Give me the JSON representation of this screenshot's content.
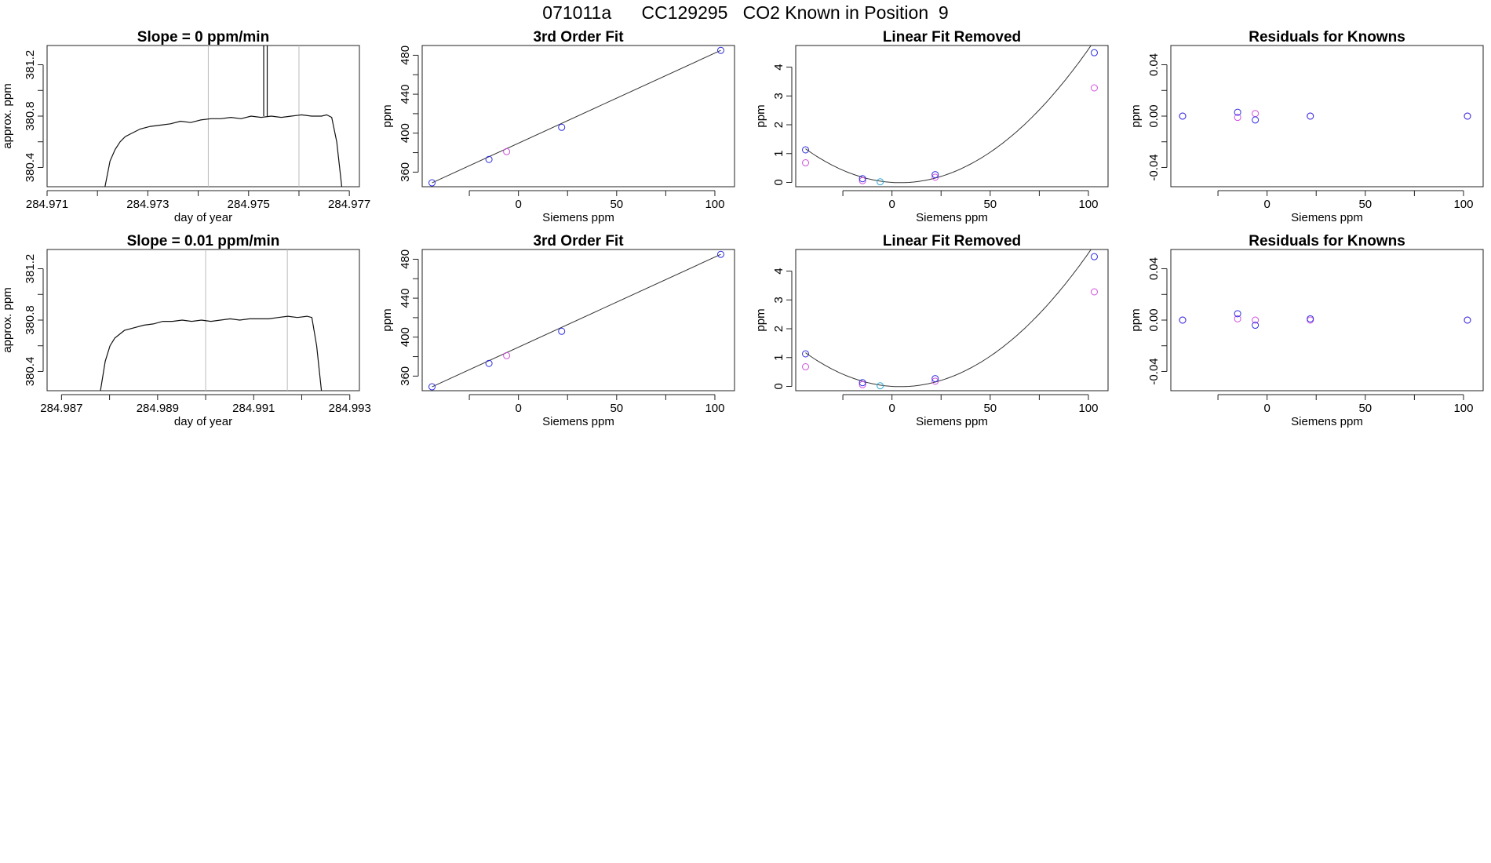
{
  "page_title": "071011a      CC129295   CO2 Known in Position  9",
  "colors": {
    "fit_line": "#333333",
    "trace": "#111111",
    "marker_bad": "#d14fe0",
    "marker_good": "#2e2ee0",
    "marker_mid": "#27a3d8",
    "vline": "#bbbbbb"
  },
  "chart_data": [
    {
      "type": "line",
      "panel": "row1-col1",
      "title": "Slope =  0  ppm/min",
      "xlabel": "day of year",
      "ylabel": "approx. ppm",
      "xlim": [
        284.971,
        284.9772
      ],
      "ylim": [
        380.25,
        381.35
      ],
      "xticks": [
        284.971,
        284.972,
        284.973,
        284.974,
        284.975,
        284.976,
        284.977
      ],
      "xtick_labels": [
        "284.971",
        "",
        "284.973",
        "",
        "284.975",
        "",
        "284.977"
      ],
      "yticks": [
        380.4,
        380.6,
        380.8,
        381.0,
        381.2
      ],
      "ytick_labels": [
        "380.4",
        "",
        "380.8",
        "",
        "381.2"
      ],
      "vlines": [
        284.9742,
        284.976
      ],
      "series": [
        {
          "name": "trace",
          "points": [
            [
              284.97215,
              380.25
            ],
            [
              284.97225,
              380.45
            ],
            [
              284.97235,
              380.54
            ],
            [
              284.97245,
              380.6
            ],
            [
              284.97255,
              380.64
            ],
            [
              284.97265,
              380.66
            ],
            [
              284.97285,
              380.7
            ],
            [
              284.97305,
              380.72
            ],
            [
              284.97325,
              380.73
            ],
            [
              284.97345,
              380.74
            ],
            [
              284.97365,
              380.76
            ],
            [
              284.97385,
              380.75
            ],
            [
              284.97405,
              380.77
            ],
            [
              284.97425,
              380.78
            ],
            [
              284.97445,
              380.78
            ],
            [
              284.97465,
              380.79
            ],
            [
              284.97485,
              380.78
            ],
            [
              284.97505,
              380.8
            ],
            [
              284.97525,
              380.79
            ],
            [
              284.97545,
              380.8
            ],
            [
              284.97565,
              380.79
            ],
            [
              284.97585,
              380.8
            ],
            [
              284.97605,
              380.81
            ],
            [
              284.97625,
              380.8
            ],
            [
              284.97645,
              380.8
            ],
            [
              284.97655,
              380.81
            ],
            [
              284.97665,
              380.79
            ],
            [
              284.97675,
              380.6
            ],
            [
              284.97685,
              380.25
            ]
          ]
        }
      ],
      "spike": {
        "x": [
          284.9753,
          284.97537
        ],
        "ymax": 381.35
      }
    },
    {
      "type": "scatter",
      "panel": "row1-col2",
      "title": "3rd Order Fit",
      "xlabel": "Siemens ppm",
      "ylabel": "ppm",
      "xlim": [
        -49,
        110
      ],
      "ylim": [
        345,
        490
      ],
      "xticks": [
        -25,
        0,
        25,
        50,
        75,
        100
      ],
      "xtick_labels": [
        "",
        "0",
        "",
        "50",
        "",
        "100"
      ],
      "yticks": [
        360,
        380,
        400,
        420,
        440,
        460,
        480
      ],
      "ytick_labels": [
        "360",
        "",
        "400",
        "",
        "440",
        "",
        "480"
      ],
      "fit_line": [
        [
          -44,
          349
        ],
        [
          103,
          485
        ]
      ],
      "points_blue": [
        [
          -44,
          349
        ],
        [
          -15,
          373
        ],
        [
          22,
          406
        ],
        [
          103,
          485
        ]
      ],
      "points_magenta": [
        [
          -6,
          381
        ]
      ]
    },
    {
      "type": "scatter",
      "panel": "row1-col3",
      "title": "Linear Fit Removed",
      "xlabel": "Siemens ppm",
      "ylabel": "ppm",
      "xlim": [
        -49,
        110
      ],
      "ylim": [
        -0.15,
        4.75
      ],
      "xticks": [
        -25,
        0,
        25,
        50,
        75,
        100
      ],
      "xtick_labels": [
        "",
        "0",
        "",
        "50",
        "",
        "100"
      ],
      "yticks": [
        0,
        1,
        2,
        3,
        4
      ],
      "ytick_labels": [
        "0",
        "1",
        "2",
        "3",
        "4"
      ],
      "curve_coeffs": {
        "a": 0.000505,
        "b": -0.0043,
        "c": 0.0
      },
      "points_blue": [
        [
          -44,
          1.13
        ],
        [
          -15,
          0.13
        ],
        [
          22,
          0.27
        ],
        [
          103,
          4.5
        ]
      ],
      "points_cyan": [
        [
          -6,
          0.02
        ]
      ],
      "points_magenta": [
        [
          -44,
          0.68
        ],
        [
          -15,
          0.06
        ],
        [
          22,
          0.18
        ],
        [
          103,
          3.28
        ]
      ]
    },
    {
      "type": "scatter",
      "panel": "row1-col4",
      "title": "Residuals for Knowns",
      "xlabel": "Siemens ppm",
      "ylabel": "ppm",
      "xlim": [
        -49,
        110
      ],
      "ylim": [
        -0.055,
        0.055
      ],
      "xticks": [
        -25,
        0,
        25,
        50,
        75,
        100
      ],
      "xtick_labels": [
        "",
        "0",
        "",
        "50",
        "",
        "100"
      ],
      "yticks": [
        -0.04,
        -0.02,
        0.0,
        0.02,
        0.04
      ],
      "ytick_labels": [
        "-0.04",
        "",
        "0.00",
        "",
        "0.04"
      ],
      "points_blue": [
        [
          -43,
          0.0
        ],
        [
          -15,
          0.003
        ],
        [
          -6,
          -0.003
        ],
        [
          22,
          0.0
        ],
        [
          102,
          0.0
        ]
      ],
      "points_magenta": [
        [
          -43,
          0.0
        ],
        [
          -15,
          -0.001
        ],
        [
          -6,
          0.002
        ],
        [
          22,
          0.0
        ],
        [
          102,
          0.0
        ]
      ]
    },
    {
      "type": "line",
      "panel": "row2-col1",
      "title": "Slope =  0.01  ppm/min",
      "xlabel": "day of year",
      "ylabel": "approx. ppm",
      "xlim": [
        284.9867,
        284.9932
      ],
      "ylim": [
        380.25,
        381.35
      ],
      "xticks": [
        284.987,
        284.988,
        284.989,
        284.99,
        284.991,
        284.992,
        284.993
      ],
      "xtick_labels": [
        "284.987",
        "",
        "284.989",
        "",
        "284.991",
        "",
        "284.993"
      ],
      "yticks": [
        380.4,
        380.6,
        380.8,
        381.0,
        381.2
      ],
      "ytick_labels": [
        "380.4",
        "",
        "380.8",
        "",
        "381.2"
      ],
      "vlines": [
        284.99,
        284.9917
      ],
      "series": [
        {
          "name": "trace",
          "points": [
            [
              284.98781,
              380.25
            ],
            [
              284.98791,
              380.48
            ],
            [
              284.98801,
              380.6
            ],
            [
              284.98811,
              380.66
            ],
            [
              284.98831,
              380.72
            ],
            [
              284.98851,
              380.74
            ],
            [
              284.98871,
              380.76
            ],
            [
              284.98891,
              380.77
            ],
            [
              284.98911,
              380.79
            ],
            [
              284.98931,
              380.79
            ],
            [
              284.98951,
              380.8
            ],
            [
              284.98971,
              380.79
            ],
            [
              284.98991,
              380.8
            ],
            [
              284.99011,
              380.79
            ],
            [
              284.99031,
              380.8
            ],
            [
              284.99051,
              380.81
            ],
            [
              284.99071,
              380.8
            ],
            [
              284.99091,
              380.81
            ],
            [
              284.99111,
              380.81
            ],
            [
              284.99131,
              380.81
            ],
            [
              284.99151,
              380.82
            ],
            [
              284.99171,
              380.83
            ],
            [
              284.99191,
              380.82
            ],
            [
              284.99211,
              380.83
            ],
            [
              284.99221,
              380.82
            ],
            [
              284.99231,
              380.6
            ],
            [
              284.99241,
              380.25
            ]
          ]
        }
      ]
    },
    {
      "type": "scatter",
      "panel": "row2-col2",
      "title": "3rd Order Fit",
      "xlabel": "Siemens ppm",
      "ylabel": "ppm",
      "xlim": [
        -49,
        110
      ],
      "ylim": [
        345,
        490
      ],
      "xticks": [
        -25,
        0,
        25,
        50,
        75,
        100
      ],
      "xtick_labels": [
        "",
        "0",
        "",
        "50",
        "",
        "100"
      ],
      "yticks": [
        360,
        380,
        400,
        420,
        440,
        460,
        480
      ],
      "ytick_labels": [
        "360",
        "",
        "400",
        "",
        "440",
        "",
        "480"
      ],
      "fit_line": [
        [
          -44,
          349
        ],
        [
          103,
          485
        ]
      ],
      "points_blue": [
        [
          -44,
          349
        ],
        [
          -15,
          373
        ],
        [
          22,
          406
        ],
        [
          103,
          485
        ]
      ],
      "points_magenta": [
        [
          -6,
          381
        ]
      ]
    },
    {
      "type": "scatter",
      "panel": "row2-col3",
      "title": "Linear Fit Removed",
      "xlabel": "Siemens ppm",
      "ylabel": "ppm",
      "xlim": [
        -49,
        110
      ],
      "ylim": [
        -0.15,
        4.75
      ],
      "xticks": [
        -25,
        0,
        25,
        50,
        75,
        100
      ],
      "xtick_labels": [
        "",
        "0",
        "",
        "50",
        "",
        "100"
      ],
      "yticks": [
        0,
        1,
        2,
        3,
        4
      ],
      "ytick_labels": [
        "0",
        "1",
        "2",
        "3",
        "4"
      ],
      "curve_coeffs": {
        "a": 0.000505,
        "b": -0.0043,
        "c": 0.0
      },
      "points_blue": [
        [
          -44,
          1.13
        ],
        [
          -15,
          0.13
        ],
        [
          22,
          0.27
        ],
        [
          103,
          4.5
        ]
      ],
      "points_cyan": [
        [
          -6,
          0.02
        ]
      ],
      "points_magenta": [
        [
          -44,
          0.68
        ],
        [
          -15,
          0.06
        ],
        [
          22,
          0.18
        ],
        [
          103,
          3.28
        ]
      ]
    },
    {
      "type": "scatter",
      "panel": "row2-col4",
      "title": "Residuals for Knowns",
      "xlabel": "Siemens ppm",
      "ylabel": "ppm",
      "xlim": [
        -49,
        110
      ],
      "ylim": [
        -0.055,
        0.055
      ],
      "xticks": [
        -25,
        0,
        25,
        50,
        75,
        100
      ],
      "xtick_labels": [
        "",
        "0",
        "",
        "50",
        "",
        "100"
      ],
      "yticks": [
        -0.04,
        -0.02,
        0.0,
        0.02,
        0.04
      ],
      "ytick_labels": [
        "-0.04",
        "",
        "0.00",
        "",
        "0.04"
      ],
      "points_blue": [
        [
          -43,
          0.0
        ],
        [
          -15,
          0.005
        ],
        [
          -6,
          -0.004
        ],
        [
          22,
          0.001
        ],
        [
          102,
          0.0
        ]
      ],
      "points_magenta": [
        [
          -43,
          0.0
        ],
        [
          -15,
          0.001
        ],
        [
          -6,
          0.0
        ],
        [
          22,
          0.0
        ],
        [
          102,
          0.0
        ]
      ]
    }
  ]
}
